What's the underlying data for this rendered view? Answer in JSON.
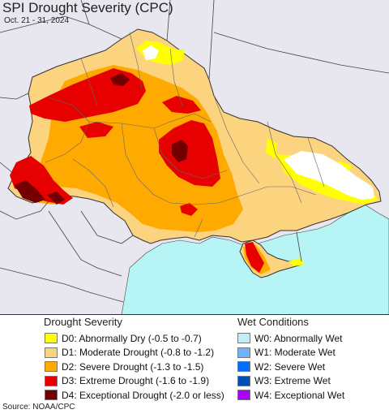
{
  "header": {
    "title": "SPI Drought Severity (CPC)",
    "date_range": "Oct. 21 - 31, 2024"
  },
  "colors": {
    "background_land": "#e8e6ee",
    "sea": "#b7f4f6",
    "d0": "#ffff00",
    "d1": "#fcd37f",
    "d2": "#ffaa00",
    "d3": "#e60000",
    "d4": "#730000",
    "no_drought": "#ffffff",
    "border": "#555555"
  },
  "legend": {
    "drought_heading": "Drought Severity",
    "drought_items": [
      {
        "label": "D0: Abnormally Dry (-0.5 to -0.7)",
        "color": "#ffff00"
      },
      {
        "label": "D1: Moderate Drought (-0.8 to -1.2)",
        "color": "#fcd37f"
      },
      {
        "label": "D2: Severe Drought (-1.3 to -1.5)",
        "color": "#ffaa00"
      },
      {
        "label": "D3: Extreme Drought (-1.6 to -1.9)",
        "color": "#e60000"
      },
      {
        "label": "D4: Exceptional Drought (-2.0 or less)",
        "color": "#730000"
      }
    ],
    "wet_heading": "Wet Conditions",
    "wet_items": [
      {
        "label": "W0: Abnormally Wet",
        "color": "#bfeef9"
      },
      {
        "label": "W1: Moderate Wet",
        "color": "#73b2ff"
      },
      {
        "label": "W2: Severe Wet",
        "color": "#0070ff"
      },
      {
        "label": "W3: Extreme Wet",
        "color": "#0050b4"
      },
      {
        "label": "W4: Exceptional Wet",
        "color": "#aa00ff"
      }
    ]
  },
  "footer": {
    "source": "Source: NOAA/CPC"
  }
}
